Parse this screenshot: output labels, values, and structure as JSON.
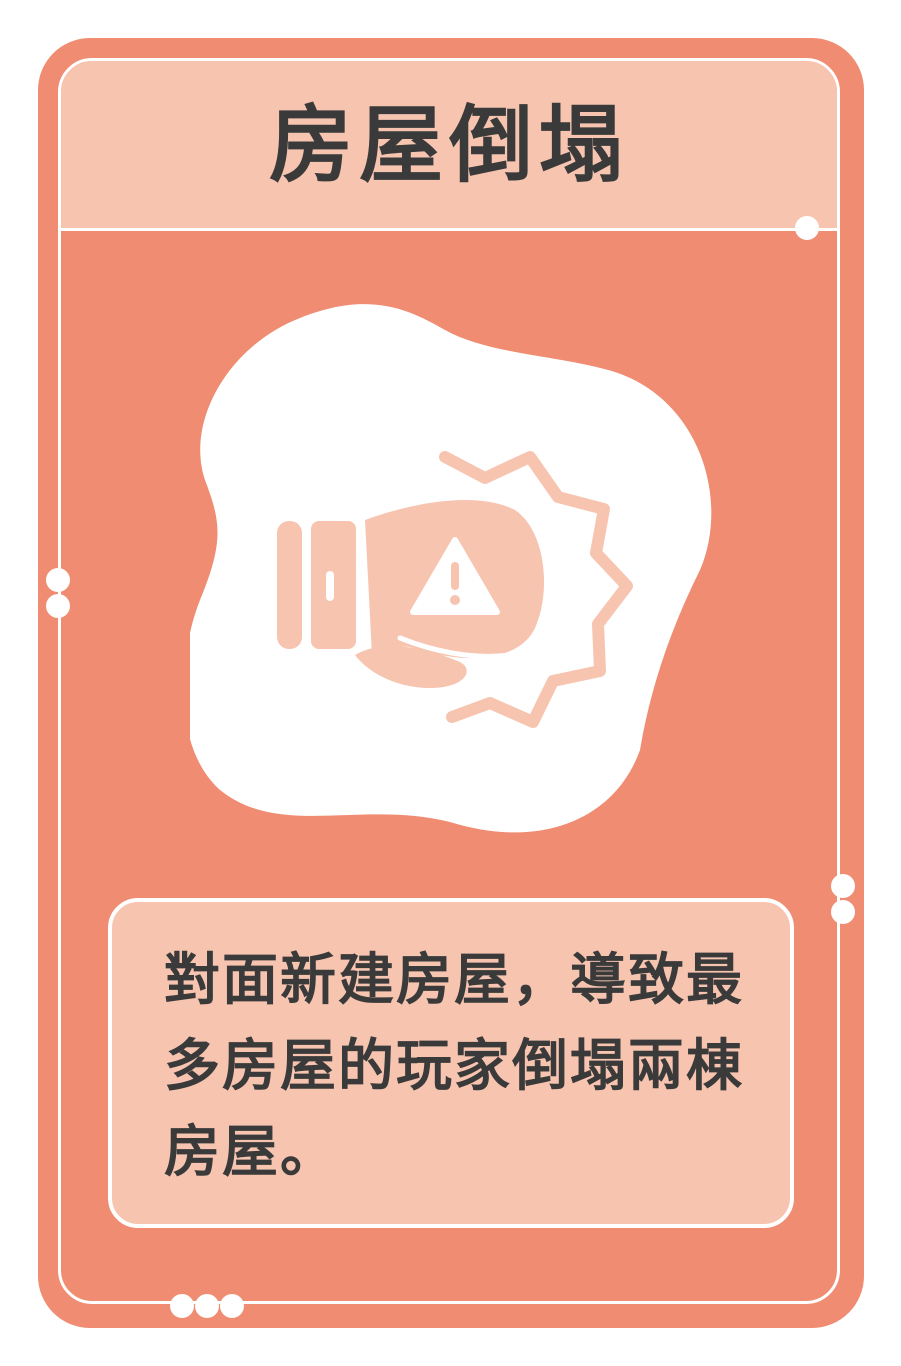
{
  "card": {
    "title": "房屋倒塌",
    "description": "對面新建房屋，導致最多房屋的玩家倒塌兩棟房屋。",
    "icon": "collapsing-house-warning-icon",
    "colors": {
      "card": "#ef8c71",
      "band": "#f7c4b0",
      "white": "#ffffff",
      "text": "#3a3a3a"
    }
  }
}
